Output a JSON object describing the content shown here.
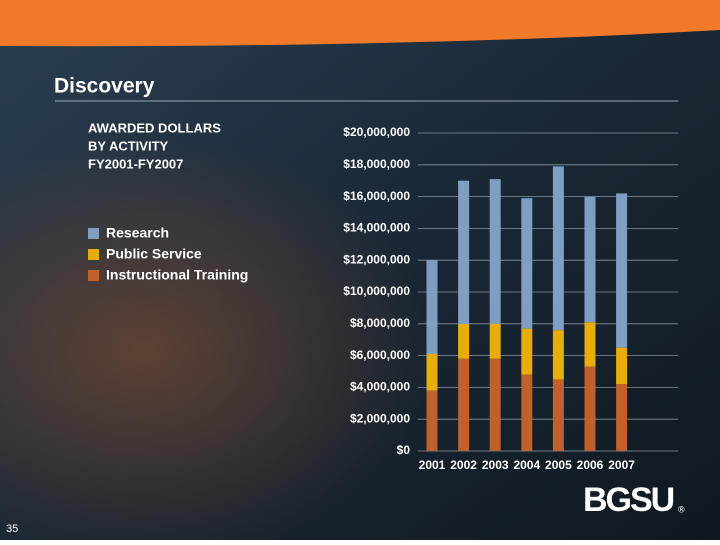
{
  "slide": {
    "heading": "Discovery",
    "number": "35",
    "logo": "BGSU",
    "logo_mark": "®"
  },
  "chart_data": {
    "type": "stacked-bar",
    "title": [
      "AWARDED DOLLARS",
      "BY ACTIVITY",
      "FY2001-FY2007"
    ],
    "categories": [
      "2001",
      "2002",
      "2003",
      "2004",
      "2005",
      "2006",
      "2007"
    ],
    "series": [
      {
        "name": "Research",
        "color": "#7f9fc2",
        "values": [
          5900000,
          9000000,
          9100000,
          8200000,
          10300000,
          7900000,
          9700000
        ]
      },
      {
        "name": "Public Service",
        "color": "#e6ad0c",
        "values": [
          2300000,
          2200000,
          2200000,
          2900000,
          3100000,
          2800000,
          2300000
        ]
      },
      {
        "name": "Instructional Training",
        "color": "#c0602a",
        "values": [
          3800000,
          5800000,
          5800000,
          4800000,
          4500000,
          5300000,
          4200000
        ]
      }
    ],
    "ylim": [
      0,
      20000000
    ],
    "yticks": [
      {
        "value": 0,
        "label": "$0"
      },
      {
        "value": 2000000,
        "label": "$2,000,000"
      },
      {
        "value": 4000000,
        "label": "$4,000,000"
      },
      {
        "value": 6000000,
        "label": "$6,000,000"
      },
      {
        "value": 8000000,
        "label": "$8,000,000"
      },
      {
        "value": 10000000,
        "label": "$10,000,000"
      },
      {
        "value": 12000000,
        "label": "$12,000,000"
      },
      {
        "value": 14000000,
        "label": "$14,000,000"
      },
      {
        "value": 16000000,
        "label": "$16,000,000"
      },
      {
        "value": 18000000,
        "label": "$18,000,000"
      },
      {
        "value": 20000000,
        "label": "$20,000,000"
      }
    ],
    "grid": true
  }
}
